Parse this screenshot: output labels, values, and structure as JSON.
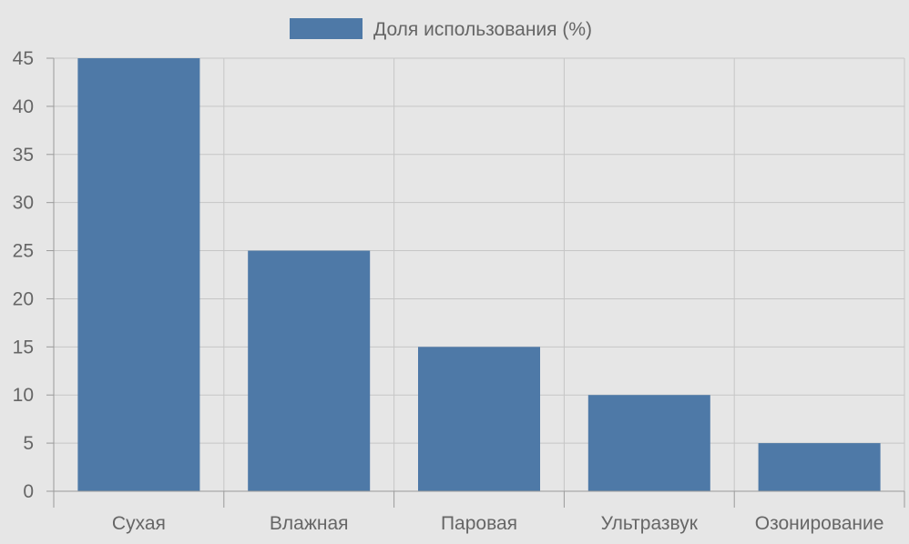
{
  "chart_data": {
    "type": "bar",
    "categories": [
      "Сухая",
      "Влажная",
      "Паровая",
      "Ультразвук",
      "Озонирование"
    ],
    "series": [
      {
        "name": "Доля использования (%)",
        "values": [
          45,
          25,
          15,
          10,
          5
        ],
        "color": "#4e79a7"
      }
    ],
    "title": "",
    "xlabel": "",
    "ylabel": "",
    "ylim": [
      0,
      45
    ],
    "yticks": [
      "0",
      "5",
      "10",
      "15",
      "20",
      "25",
      "30",
      "35",
      "40",
      "45"
    ],
    "grid": true,
    "legend_position": "top-center"
  }
}
